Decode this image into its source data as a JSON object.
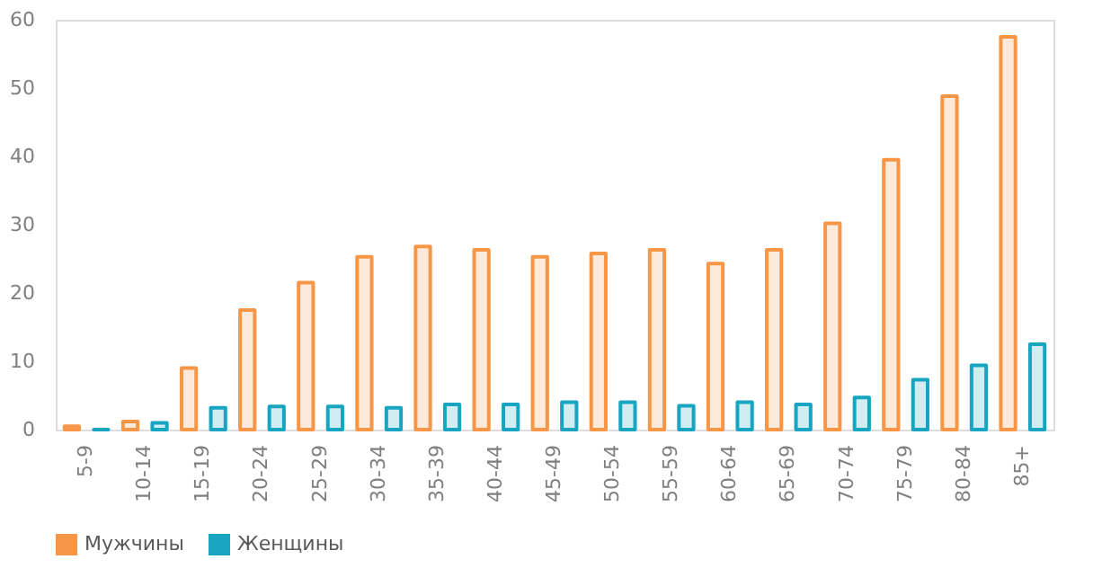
{
  "chart_data": {
    "type": "bar",
    "categories": [
      "5-9",
      "10-14",
      "15-19",
      "20-24",
      "25-29",
      "30-34",
      "35-39",
      "40-44",
      "45-49",
      "50-54",
      "55-59",
      "60-64",
      "65-69",
      "70-74",
      "75-79",
      "80-84",
      "85+"
    ],
    "series": [
      {
        "name": "Мужчины",
        "color": "#f79646",
        "values": [
          0.5,
          1.2,
          9,
          17.5,
          21.5,
          25.3,
          26.8,
          26.3,
          25.3,
          25.8,
          26.3,
          24.3,
          26.3,
          30.2,
          39.5,
          48.8,
          57.5
        ]
      },
      {
        "name": "Женщины",
        "color": "#17a5c0",
        "values": [
          0,
          1,
          3.2,
          3.4,
          3.4,
          3.2,
          3.7,
          3.7,
          4,
          4,
          3.5,
          4,
          3.7,
          4.7,
          7.3,
          9.4,
          12.5
        ]
      }
    ],
    "ylim": [
      0,
      60
    ],
    "yticks": [
      0,
      10,
      20,
      30,
      40,
      50,
      60
    ],
    "grid": false,
    "legend": "bottom"
  }
}
